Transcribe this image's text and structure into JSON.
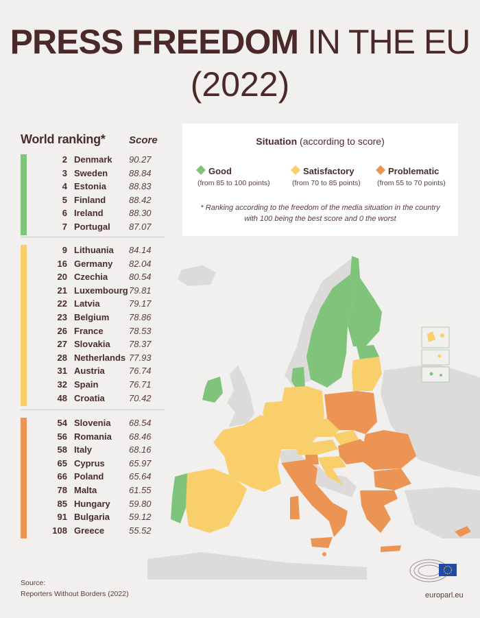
{
  "title": {
    "bold": "PRESS FREEDOM",
    "thin": " IN THE EU",
    "year": "(2022)"
  },
  "columns": {
    "ranking": "World ranking*",
    "score": "Score"
  },
  "colors": {
    "good": "#7fc47a",
    "satisfactory": "#f8cf6a",
    "problematic": "#ec9454",
    "non_eu": "#dcdbda"
  },
  "groups": [
    {
      "category": "good",
      "rows": [
        {
          "rank": "2",
          "country": "Denmark",
          "score": "90.27"
        },
        {
          "rank": "3",
          "country": "Sweden",
          "score": "88.84"
        },
        {
          "rank": "4",
          "country": "Estonia",
          "score": "88.83"
        },
        {
          "rank": "5",
          "country": "Finland",
          "score": "88.42"
        },
        {
          "rank": "6",
          "country": "Ireland",
          "score": "88.30"
        },
        {
          "rank": "7",
          "country": "Portugal",
          "score": "87.07"
        }
      ]
    },
    {
      "category": "satisfactory",
      "rows": [
        {
          "rank": "9",
          "country": "Lithuania",
          "score": "84.14"
        },
        {
          "rank": "16",
          "country": "Germany",
          "score": "82.04"
        },
        {
          "rank": "20",
          "country": "Czechia",
          "score": "80.54"
        },
        {
          "rank": "21",
          "country": "Luxembourg",
          "score": "79.81"
        },
        {
          "rank": "22",
          "country": "Latvia",
          "score": "79.17"
        },
        {
          "rank": "23",
          "country": "Belgium",
          "score": "78.86"
        },
        {
          "rank": "26",
          "country": "France",
          "score": "78.53"
        },
        {
          "rank": "27",
          "country": "Slovakia",
          "score": "78.37"
        },
        {
          "rank": "28",
          "country": "Netherlands",
          "score": "77.93"
        },
        {
          "rank": "31",
          "country": "Austria",
          "score": "76.74"
        },
        {
          "rank": "32",
          "country": "Spain",
          "score": "76.71"
        },
        {
          "rank": "48",
          "country": "Croatia",
          "score": "70.42"
        }
      ]
    },
    {
      "category": "problematic",
      "rows": [
        {
          "rank": "54",
          "country": "Slovenia",
          "score": "68.54"
        },
        {
          "rank": "56",
          "country": "Romania",
          "score": "68.46"
        },
        {
          "rank": "58",
          "country": "Italy",
          "score": "68.16"
        },
        {
          "rank": "65",
          "country": "Cyprus",
          "score": "65.97"
        },
        {
          "rank": "66",
          "country": "Poland",
          "score": "65.64"
        },
        {
          "rank": "78",
          "country": "Malta",
          "score": "61.55"
        },
        {
          "rank": "85",
          "country": "Hungary",
          "score": "59.80"
        },
        {
          "rank": "91",
          "country": "Bulgaria",
          "score": "59.12"
        },
        {
          "rank": "108",
          "country": "Greece",
          "score": "55.52"
        }
      ]
    }
  ],
  "legend": {
    "title_bold": "Situation",
    "title_rest": " (according to score)",
    "items": [
      {
        "label": "Good",
        "range": "(from 85 to 100 points)"
      },
      {
        "label": "Satisfactory",
        "range": "(from 70 to 85 points)"
      },
      {
        "label": "Problematic",
        "range": "(from 55 to 70 points)"
      }
    ],
    "note_line1": "* Ranking according to the freedom of the media situation in the country",
    "note_line2": "with 100 being the best score and 0 the worst"
  },
  "footer": {
    "source_label": "Source:",
    "source": "Reporters Without Borders (2022)",
    "site": "europarl.eu"
  },
  "map_regions": [
    {
      "name": "sweden",
      "category": "good"
    },
    {
      "name": "finland",
      "category": "good"
    },
    {
      "name": "denmark",
      "category": "good"
    },
    {
      "name": "estonia",
      "category": "good"
    },
    {
      "name": "ireland",
      "category": "good"
    },
    {
      "name": "portugal",
      "category": "good"
    },
    {
      "name": "latvia-lithuania",
      "category": "satisfactory"
    },
    {
      "name": "france",
      "category": "satisfactory"
    },
    {
      "name": "spain",
      "category": "satisfactory"
    },
    {
      "name": "germany",
      "category": "satisfactory"
    },
    {
      "name": "benelux",
      "category": "satisfactory"
    },
    {
      "name": "czechia",
      "category": "satisfactory"
    },
    {
      "name": "austria",
      "category": "satisfactory"
    },
    {
      "name": "slovakia",
      "category": "satisfactory"
    },
    {
      "name": "croatia",
      "category": "satisfactory"
    },
    {
      "name": "poland",
      "category": "problematic"
    },
    {
      "name": "romania",
      "category": "problematic"
    },
    {
      "name": "hungary",
      "category": "problematic"
    },
    {
      "name": "italy",
      "category": "problematic"
    },
    {
      "name": "slovenia",
      "category": "problematic"
    },
    {
      "name": "bulgaria",
      "category": "problematic"
    },
    {
      "name": "greece",
      "category": "problematic"
    },
    {
      "name": "cyprus",
      "category": "problematic"
    },
    {
      "name": "malta",
      "category": "problematic"
    }
  ]
}
